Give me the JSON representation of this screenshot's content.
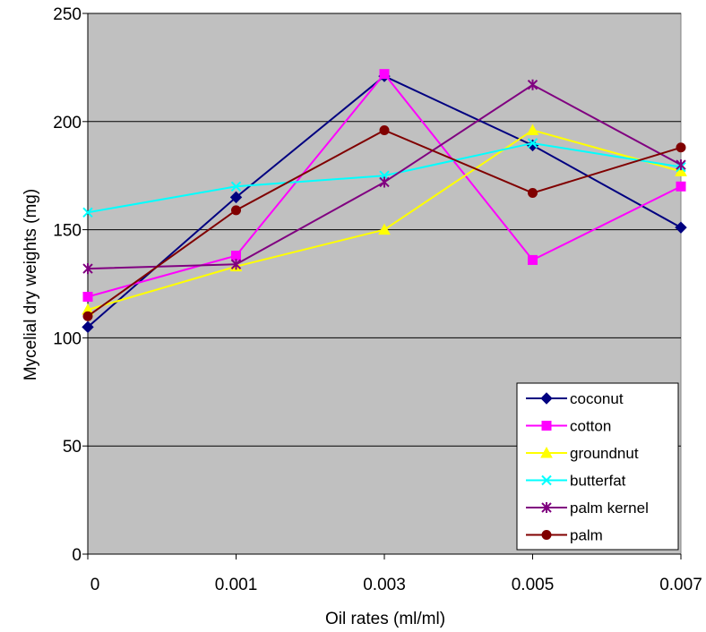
{
  "chart_data": {
    "type": "line",
    "title": "",
    "xlabel": "Oil rates (ml/ml)",
    "ylabel": "Mycelial dry weights (mg)",
    "categories": [
      "0",
      "0.001",
      "0.003",
      "0.005",
      "0.007"
    ],
    "ylim": [
      0,
      250
    ],
    "yticks": [
      "0",
      "50",
      "100",
      "150",
      "200",
      "250"
    ],
    "grid": true,
    "plot_background": "#c0c0c0",
    "legend_position": "bottom-right",
    "series": [
      {
        "name": "coconut",
        "color": "#000080",
        "marker": "diamond",
        "values": [
          105,
          165,
          221,
          189,
          151
        ]
      },
      {
        "name": "cotton",
        "color": "#ff00ff",
        "marker": "square",
        "values": [
          119,
          138,
          222,
          136,
          170
        ]
      },
      {
        "name": "groundnut",
        "color": "#ffff00",
        "marker": "triangle",
        "values": [
          113,
          133,
          150,
          196,
          177
        ]
      },
      {
        "name": "butterfat",
        "color": "#00ffff",
        "marker": "x",
        "values": [
          158,
          170,
          175,
          190,
          179
        ]
      },
      {
        "name": "palm kernel",
        "color": "#800080",
        "marker": "star",
        "values": [
          132,
          134,
          172,
          217,
          180
        ]
      },
      {
        "name": "palm",
        "color": "#800000",
        "marker": "circle",
        "values": [
          110,
          159,
          196,
          167,
          188
        ]
      }
    ]
  }
}
